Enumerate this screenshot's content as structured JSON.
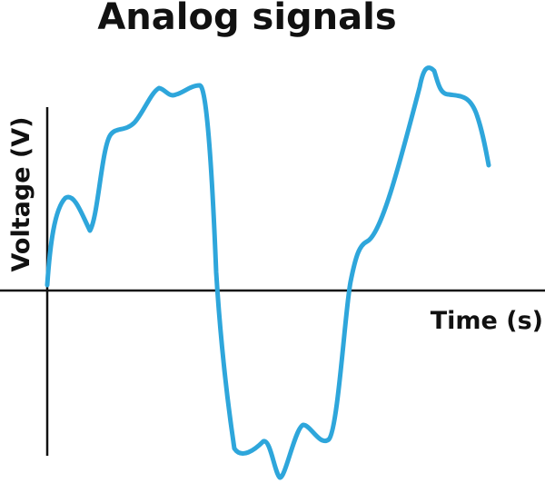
{
  "title": "Analog signals",
  "y_axis_label": "Voltage (V)",
  "x_axis_label": "Time (s)",
  "colors": {
    "signal": "#2ea6db",
    "axes": "#111111",
    "text": "#111111",
    "background": "#ffffff"
  }
}
